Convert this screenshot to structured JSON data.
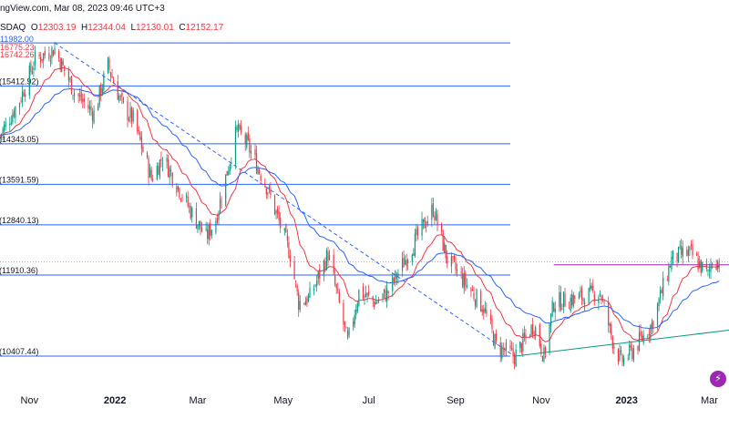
{
  "header": {
    "source": "ngView.com, Mar 08, 2023 09:46 UTC+3",
    "symbol": "SDAQ",
    "ohlc": [
      {
        "label": "O",
        "value": "12303.19"
      },
      {
        "label": "H",
        "value": "12344.04"
      },
      {
        "label": "L",
        "value": "12130.01"
      },
      {
        "label": "C",
        "value": "12152.17"
      }
    ],
    "ma_values": [
      {
        "text": "11982.00",
        "color": "#2962ff"
      },
      {
        "text": "16775.23",
        "color": "#f23645"
      },
      {
        "text": "16742.26",
        "color": "#f23645"
      }
    ]
  },
  "colors": {
    "up": "#089981",
    "down": "#f23645",
    "ma_fast": "#f23645",
    "ma_slow": "#2962ff",
    "fib_line": "#2962ff",
    "support_line": "#089981",
    "resistance_line": "#9c27b0",
    "logo": "#9c27b0"
  },
  "logo_icon": "lightning-bolt-icon",
  "chart_data": {
    "type": "candlestick",
    "title": "",
    "xlabel": "",
    "ylabel": "",
    "x_ticks": [
      {
        "label": "Nov",
        "date": "2021-11-01",
        "bold": false
      },
      {
        "label": "2022",
        "date": "2022-01-01",
        "bold": true
      },
      {
        "label": "Mar",
        "date": "2022-03-01",
        "bold": false
      },
      {
        "label": "May",
        "date": "2022-05-01",
        "bold": false
      },
      {
        "label": "Jul",
        "date": "2022-07-01",
        "bold": false
      },
      {
        "label": "Sep",
        "date": "2022-09-01",
        "bold": false
      },
      {
        "label": "Nov",
        "date": "2022-11-01",
        "bold": false
      },
      {
        "label": "2023",
        "date": "2023-01-01",
        "bold": true
      },
      {
        "label": "Mar",
        "date": "2023-03-01",
        "bold": false
      }
    ],
    "x_range": [
      "2021-10-11",
      "2023-03-15"
    ],
    "fib_levels": [
      {
        "label": "",
        "value": 16212
      },
      {
        "label": "15412.92",
        "value": 15412.92
      },
      {
        "label": "14343.05",
        "value": 14343.05
      },
      {
        "label": "13591.59",
        "value": 13591.59
      },
      {
        "label": "12840.13",
        "value": 12840.13
      },
      {
        "label": "11910.36",
        "value": 11910.36
      },
      {
        "label": "10407.44",
        "value": 10407.44
      }
    ],
    "trendlines": [
      {
        "name": "downtrend",
        "style": "dashed",
        "from": [
          "2021-11-19",
          16212
        ],
        "to": [
          "2022-10-13",
          10407
        ]
      },
      {
        "name": "uptrend-support",
        "style": "solid",
        "from": [
          "2022-10-13",
          10407
        ],
        "to": [
          "2023-03-15",
          10890
        ]
      },
      {
        "name": "resistance",
        "style": "solid",
        "from": [
          "2022-11-10",
          12100
        ],
        "to": [
          "2023-03-15",
          12100
        ]
      }
    ],
    "close_points": [
      [
        "2021-10-11",
        14500
      ],
      [
        "2021-10-25",
        15150
      ],
      [
        "2021-11-05",
        15900
      ],
      [
        "2021-11-19",
        16100
      ],
      [
        "2021-12-03",
        15300
      ],
      [
        "2021-12-17",
        14900
      ],
      [
        "2021-12-27",
        15800
      ],
      [
        "2022-01-07",
        15000
      ],
      [
        "2022-01-14",
        14800
      ],
      [
        "2022-01-27",
        13700
      ],
      [
        "2022-02-04",
        14100
      ],
      [
        "2022-02-24",
        13100
      ],
      [
        "2022-03-07",
        12600
      ],
      [
        "2022-03-14",
        12950
      ],
      [
        "2022-03-29",
        14600
      ],
      [
        "2022-04-06",
        14300
      ],
      [
        "2022-04-20",
        13500
      ],
      [
        "2022-05-06",
        12300
      ],
      [
        "2022-05-12",
        11400
      ],
      [
        "2022-05-20",
        11500
      ],
      [
        "2022-06-02",
        12300
      ],
      [
        "2022-06-16",
        10650
      ],
      [
        "2022-06-24",
        11600
      ],
      [
        "2022-07-06",
        11400
      ],
      [
        "2022-07-15",
        11600
      ],
      [
        "2022-07-29",
        12300
      ],
      [
        "2022-08-16",
        13150
      ],
      [
        "2022-08-26",
        12200
      ],
      [
        "2022-09-07",
        11800
      ],
      [
        "2022-09-21",
        11300
      ],
      [
        "2022-09-30",
        10600
      ],
      [
        "2022-10-13",
        10400
      ],
      [
        "2022-10-27",
        11000
      ],
      [
        "2022-11-03",
        10400
      ],
      [
        "2022-11-10",
        11400
      ],
      [
        "2022-11-30",
        11500
      ],
      [
        "2022-12-13",
        11600
      ],
      [
        "2022-12-22",
        10700
      ],
      [
        "2022-12-28",
        10300
      ],
      [
        "2023-01-05",
        10500
      ],
      [
        "2023-01-19",
        11000
      ],
      [
        "2023-02-02",
        12200
      ],
      [
        "2023-02-10",
        12300
      ],
      [
        "2023-02-16",
        12300
      ],
      [
        "2023-02-28",
        11900
      ],
      [
        "2023-03-03",
        12200
      ],
      [
        "2023-03-08",
        12152
      ]
    ],
    "y_range": [
      9750,
      16500
    ]
  }
}
